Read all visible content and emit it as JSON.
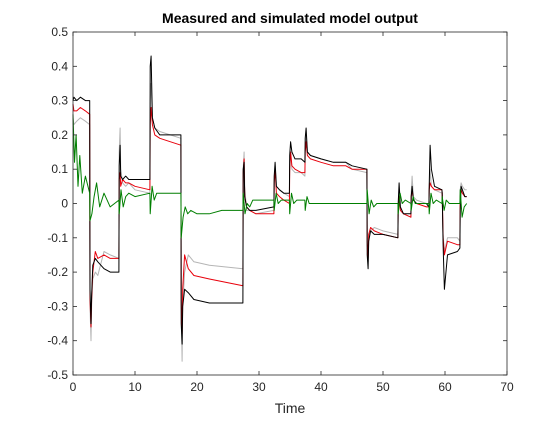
{
  "chart_data": {
    "type": "line",
    "title": "Measured and simulated model output",
    "xlabel": "Time",
    "ylabel": "",
    "xlim": [
      0,
      70
    ],
    "ylim": [
      -0.5,
      0.5
    ],
    "xticks": [
      0,
      10,
      20,
      30,
      40,
      50,
      60,
      70
    ],
    "xtick_labels": [
      "0",
      "10",
      "20",
      "30",
      "40",
      "50",
      "60",
      "70"
    ],
    "yticks": [
      -0.5,
      -0.4,
      -0.3,
      -0.2,
      -0.1,
      0,
      0.1,
      0.2,
      0.3,
      0.4,
      0.5
    ],
    "ytick_labels": [
      "-0.5",
      "-0.4",
      "-0.3",
      "-0.2",
      "-0.1",
      "0",
      "0.1",
      "0.2",
      "0.3",
      "0.4",
      "0.5"
    ],
    "grid": false,
    "legend": "none",
    "series": [
      {
        "color": "#b5b5b5",
        "x": [
          0.0,
          0.15,
          0.6,
          1.2,
          2.0,
          2.7,
          2.75,
          2.9,
          3.0,
          3.2,
          3.6,
          4.0,
          5.0,
          6.0,
          7.4,
          7.45,
          7.6,
          7.7,
          8.0,
          8.5,
          9.0,
          10.0,
          12.4,
          12.45,
          12.6,
          12.8,
          13.2,
          14.0,
          17.4,
          17.45,
          17.6,
          17.7,
          18.0,
          18.6,
          19.5,
          22.0,
          27.4,
          27.45,
          27.6,
          27.7,
          28.0,
          28.5,
          29.5,
          32.4,
          32.45,
          32.6,
          32.8,
          33.3,
          34.0,
          34.9,
          34.95,
          35.1,
          35.3,
          35.8,
          36.8,
          37.4,
          37.45,
          37.6,
          37.8,
          38.3,
          40.0,
          42.0,
          44.0,
          45.0,
          47.4,
          47.45,
          47.6,
          47.7,
          48.0,
          48.6,
          50.0,
          52.4,
          52.45,
          52.6,
          52.8,
          53.3,
          54.5,
          54.55,
          54.7,
          54.9,
          55.4,
          57.0,
          57.4,
          57.45,
          57.6,
          57.8,
          58.3,
          59.5,
          59.55,
          59.7,
          59.9,
          60.4,
          62.0,
          62.4,
          62.45,
          62.6,
          62.8,
          63.2,
          63.5
        ],
        "y": [
          0.25,
          0.23,
          0.24,
          0.25,
          0.24,
          0.23,
          -0.3,
          -0.4,
          -0.3,
          -0.22,
          -0.2,
          -0.21,
          -0.14,
          -0.15,
          -0.16,
          0.15,
          0.22,
          0.1,
          0.06,
          0.05,
          0.06,
          0.04,
          0.03,
          0.3,
          0.35,
          0.25,
          0.22,
          0.21,
          0.19,
          -0.3,
          -0.46,
          -0.3,
          -0.2,
          -0.15,
          -0.17,
          -0.18,
          -0.19,
          0.1,
          0.15,
          0.05,
          -0.02,
          -0.02,
          -0.03,
          -0.02,
          0.07,
          0.11,
          0.05,
          0.04,
          0.03,
          0.02,
          0.12,
          0.15,
          0.1,
          0.09,
          0.09,
          0.08,
          0.16,
          0.2,
          0.15,
          0.14,
          0.13,
          0.12,
          0.12,
          0.1,
          0.09,
          -0.12,
          -0.17,
          -0.1,
          -0.08,
          -0.07,
          -0.08,
          -0.09,
          -0.01,
          0.04,
          -0.02,
          -0.03,
          -0.04,
          0.03,
          0.08,
          0.02,
          0.01,
          0.0,
          -0.01,
          0.04,
          0.1,
          0.05,
          0.04,
          0.03,
          0.02,
          -0.09,
          -0.14,
          -0.1,
          -0.1,
          -0.11,
          0.04,
          0.06,
          0.05,
          0.04,
          0.04
        ]
      },
      {
        "color": "#e8000b",
        "x": [
          0.0,
          0.15,
          0.6,
          1.2,
          2.0,
          2.7,
          2.75,
          2.9,
          3.0,
          3.2,
          3.6,
          4.0,
          5.0,
          6.0,
          7.4,
          7.45,
          7.6,
          7.7,
          8.0,
          8.5,
          9.0,
          10.0,
          12.4,
          12.45,
          12.6,
          12.8,
          13.2,
          14.0,
          17.4,
          17.45,
          17.6,
          17.7,
          18.0,
          18.6,
          19.5,
          22.0,
          27.4,
          27.45,
          27.6,
          27.7,
          28.0,
          28.5,
          29.5,
          32.4,
          32.45,
          32.6,
          32.8,
          33.3,
          34.0,
          34.9,
          34.95,
          35.1,
          35.3,
          35.8,
          36.8,
          37.4,
          37.45,
          37.6,
          37.8,
          38.3,
          40.0,
          42.0,
          44.0,
          45.0,
          47.4,
          47.45,
          47.6,
          47.7,
          48.0,
          48.6,
          50.0,
          52.4,
          52.45,
          52.6,
          52.8,
          53.3,
          54.5,
          54.55,
          54.7,
          54.9,
          55.4,
          57.0,
          57.4,
          57.45,
          57.6,
          57.8,
          58.3,
          59.5,
          59.55,
          59.7,
          59.9,
          60.4,
          62.0,
          62.4,
          62.45,
          62.6,
          62.8,
          63.2,
          63.5
        ],
        "y": [
          0.29,
          0.27,
          0.27,
          0.28,
          0.27,
          0.26,
          -0.28,
          -0.36,
          -0.28,
          -0.2,
          -0.14,
          -0.16,
          -0.15,
          -0.16,
          -0.16,
          0.07,
          0.09,
          0.05,
          0.07,
          0.06,
          0.06,
          0.05,
          0.04,
          0.23,
          0.28,
          0.23,
          0.2,
          0.19,
          0.17,
          -0.28,
          -0.38,
          -0.25,
          -0.15,
          -0.19,
          -0.21,
          -0.22,
          -0.24,
          0.09,
          0.13,
          0.02,
          -0.01,
          -0.02,
          -0.03,
          -0.03,
          0.06,
          0.1,
          0.03,
          0.02,
          0.01,
          0.0,
          0.1,
          0.15,
          0.11,
          0.1,
          0.09,
          0.09,
          0.15,
          0.18,
          0.14,
          0.13,
          0.12,
          0.11,
          0.11,
          0.1,
          0.1,
          -0.11,
          -0.16,
          -0.09,
          -0.07,
          -0.08,
          -0.09,
          -0.1,
          -0.01,
          0.02,
          -0.02,
          -0.03,
          -0.04,
          0.02,
          0.04,
          0.01,
          0.0,
          -0.01,
          -0.01,
          0.04,
          0.06,
          0.05,
          0.04,
          0.04,
          0.03,
          -0.1,
          -0.15,
          -0.11,
          -0.12,
          -0.12,
          0.02,
          0.04,
          0.03,
          0.02,
          0.02
        ]
      },
      {
        "color": "#000000",
        "x": [
          0.0,
          0.15,
          0.6,
          1.2,
          2.0,
          2.7,
          2.75,
          2.9,
          3.0,
          3.2,
          3.6,
          4.0,
          5.0,
          6.0,
          7.4,
          7.45,
          7.6,
          7.7,
          8.0,
          8.5,
          9.0,
          10.0,
          12.4,
          12.45,
          12.6,
          12.8,
          13.2,
          14.0,
          17.4,
          17.45,
          17.6,
          17.7,
          18.0,
          18.6,
          19.5,
          22.0,
          27.4,
          27.45,
          27.6,
          27.7,
          28.0,
          28.5,
          29.5,
          32.4,
          32.45,
          32.6,
          32.8,
          33.3,
          34.0,
          34.9,
          34.95,
          35.1,
          35.3,
          35.8,
          36.8,
          37.4,
          37.45,
          37.6,
          37.8,
          38.3,
          40.0,
          42.0,
          44.0,
          45.0,
          47.4,
          47.45,
          47.6,
          47.7,
          48.0,
          48.6,
          50.0,
          52.4,
          52.45,
          52.6,
          52.8,
          53.3,
          54.5,
          54.55,
          54.7,
          54.9,
          55.4,
          57.0,
          57.4,
          57.45,
          57.6,
          57.8,
          58.3,
          59.5,
          59.55,
          59.7,
          59.9,
          60.4,
          62.0,
          62.4,
          62.45,
          62.6,
          62.8,
          63.2,
          63.5
        ],
        "y": [
          0.3,
          0.31,
          0.3,
          0.31,
          0.3,
          0.3,
          -0.25,
          -0.35,
          -0.27,
          -0.18,
          -0.16,
          -0.17,
          -0.19,
          -0.2,
          -0.2,
          0.11,
          0.17,
          0.08,
          0.07,
          0.08,
          0.07,
          0.07,
          0.07,
          0.4,
          0.43,
          0.25,
          0.22,
          0.2,
          0.2,
          -0.35,
          -0.41,
          -0.3,
          -0.25,
          -0.26,
          -0.28,
          -0.29,
          -0.29,
          0.1,
          0.12,
          0.02,
          -0.01,
          -0.02,
          -0.02,
          -0.01,
          0.08,
          0.12,
          0.05,
          0.04,
          0.03,
          0.03,
          0.14,
          0.18,
          0.15,
          0.13,
          0.13,
          0.12,
          0.19,
          0.22,
          0.15,
          0.14,
          0.13,
          0.12,
          0.12,
          0.11,
          0.1,
          -0.15,
          -0.19,
          -0.11,
          -0.08,
          -0.09,
          -0.09,
          -0.1,
          0.0,
          0.06,
          -0.01,
          -0.03,
          -0.03,
          0.02,
          0.05,
          0.01,
          0.0,
          0.0,
          -0.01,
          0.05,
          0.17,
          0.1,
          0.05,
          0.04,
          0.03,
          -0.12,
          -0.25,
          -0.15,
          -0.14,
          -0.13,
          -0.02,
          0.05,
          0.04,
          0.02,
          0.02
        ]
      },
      {
        "color": "#007f00",
        "x": [
          0.0,
          0.25,
          0.5,
          0.8,
          1.1,
          1.5,
          2.0,
          2.7,
          2.75,
          3.05,
          3.4,
          3.8,
          4.3,
          5.0,
          6.0,
          7.4,
          7.45,
          7.75,
          8.1,
          8.5,
          9.0,
          10.0,
          12.4,
          12.45,
          12.75,
          13.1,
          13.5,
          14.2,
          17.4,
          17.45,
          17.75,
          18.1,
          18.5,
          19.0,
          20.0,
          22.0,
          24.0,
          27.4,
          27.45,
          27.75,
          28.1,
          28.5,
          29.0,
          30.0,
          32.4,
          32.45,
          32.75,
          33.1,
          33.6,
          34.9,
          34.95,
          35.25,
          35.6,
          36.1,
          37.4,
          37.45,
          37.75,
          38.1,
          38.6,
          40.0,
          44.0,
          47.4,
          47.45,
          47.75,
          48.1,
          48.5,
          49.0,
          50.0,
          52.4,
          52.45,
          52.75,
          53.1,
          53.6,
          54.5,
          54.55,
          54.85,
          55.2,
          55.7,
          57.4,
          57.45,
          57.75,
          58.1,
          58.6,
          59.5,
          59.55,
          59.85,
          60.2,
          60.7,
          62.4,
          62.45,
          62.75,
          63.1,
          63.5
        ],
        "y": [
          0.26,
          0.12,
          0.2,
          0.05,
          0.14,
          0.03,
          0.08,
          0.03,
          -0.05,
          -0.03,
          0.02,
          0.06,
          -0.01,
          0.03,
          -0.01,
          0.01,
          -0.03,
          0.04,
          -0.01,
          0.02,
          0.03,
          0.02,
          0.03,
          -0.03,
          0.05,
          0.01,
          0.03,
          0.03,
          0.03,
          -0.1,
          -0.04,
          -0.01,
          -0.03,
          -0.02,
          -0.03,
          -0.03,
          -0.02,
          -0.02,
          0.03,
          -0.03,
          0.0,
          -0.01,
          0.01,
          0.01,
          0.01,
          -0.02,
          0.03,
          0.0,
          0.01,
          0.01,
          -0.03,
          0.03,
          0.0,
          0.01,
          0.01,
          -0.02,
          0.02,
          0.0,
          0.0,
          0.0,
          0.0,
          0.0,
          0.04,
          -0.03,
          0.01,
          -0.01,
          0.0,
          0.0,
          0.0,
          -0.03,
          0.03,
          0.0,
          0.01,
          0.0,
          -0.02,
          0.02,
          0.0,
          0.0,
          0.0,
          -0.03,
          0.03,
          0.0,
          0.01,
          0.0,
          0.02,
          -0.02,
          0.01,
          0.0,
          0.0,
          0.04,
          -0.04,
          -0.01,
          0.0
        ]
      }
    ]
  }
}
